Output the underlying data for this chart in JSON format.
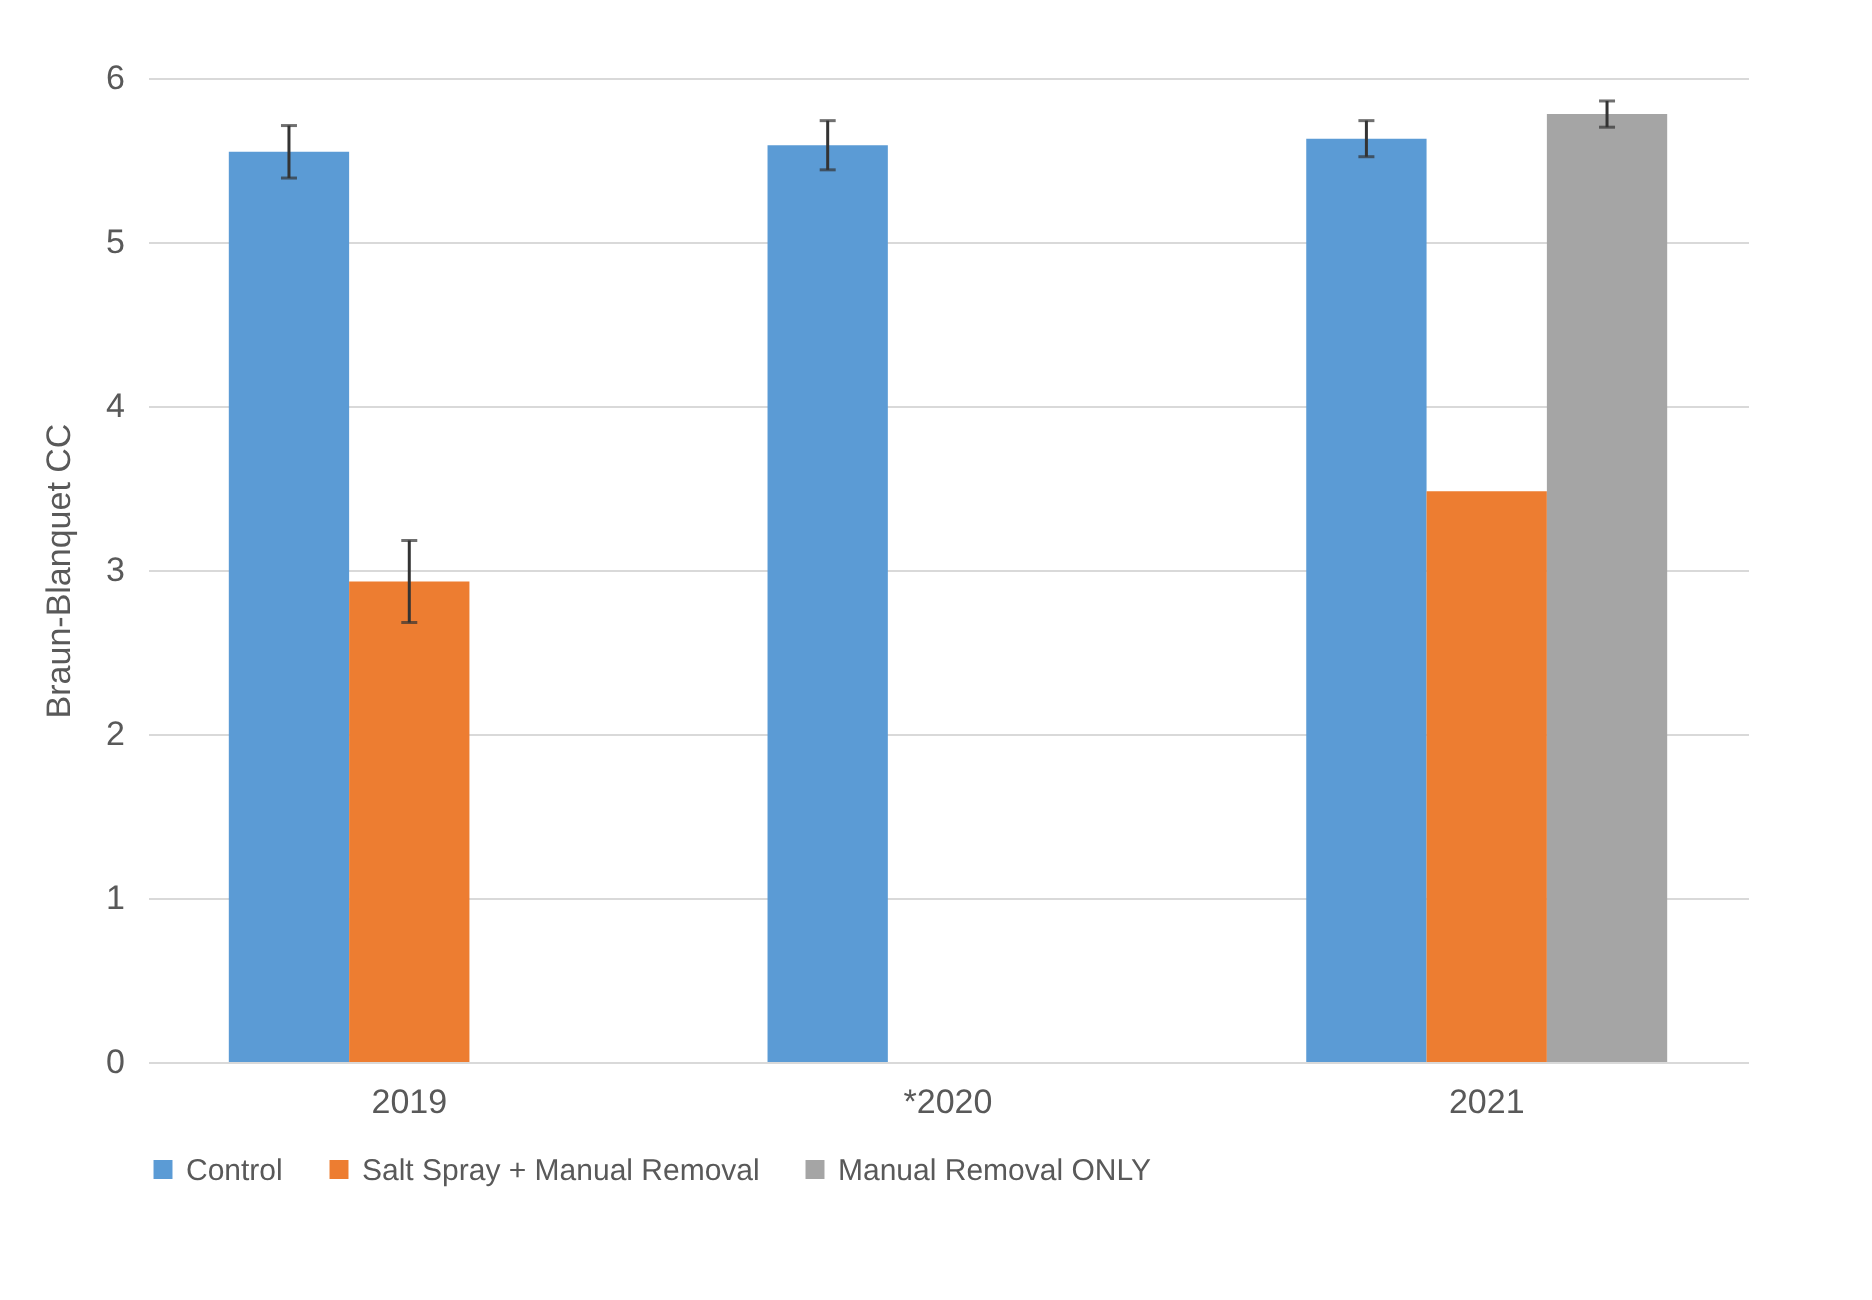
{
  "chart_data": {
    "type": "bar",
    "ylabel": "Braun-Blanquet CC",
    "categories": [
      "2019",
      "*2020",
      "2021"
    ],
    "series": [
      {
        "name": "Control",
        "color": "#5b9bd5",
        "values": [
          5.55,
          5.59,
          5.63
        ],
        "errors": [
          0.16,
          0.15,
          0.11
        ]
      },
      {
        "name": "Salt Spray + Manual Removal",
        "color": "#ed7d31",
        "values": [
          2.93,
          null,
          3.48
        ],
        "errors": [
          0.25,
          null,
          null
        ]
      },
      {
        "name": "Manual Removal ONLY",
        "color": "#a5a5a5",
        "values": [
          null,
          null,
          5.78
        ],
        "errors": [
          null,
          null,
          0.08
        ]
      }
    ],
    "ylim": [
      0,
      6
    ],
    "yticks": [
      0,
      1,
      2,
      3,
      4,
      5,
      6
    ],
    "grid": "y",
    "legend": "bottom"
  }
}
